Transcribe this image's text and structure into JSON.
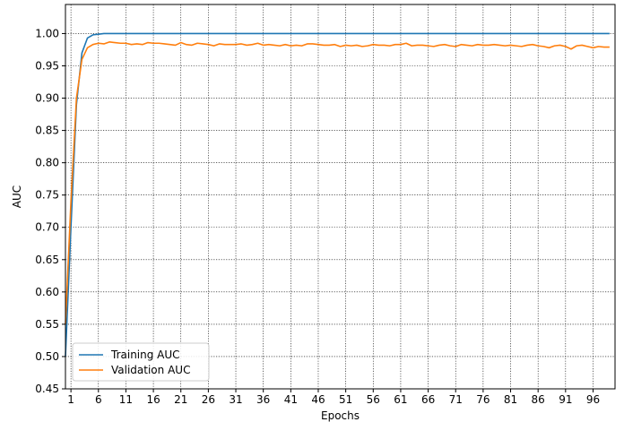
{
  "chart_data": {
    "type": "line",
    "xlabel": "Epochs",
    "ylabel": "AUC",
    "xlim": [
      0,
      100
    ],
    "ylim": [
      0.45,
      1.045
    ],
    "x_ticks": [
      1,
      6,
      11,
      16,
      21,
      26,
      31,
      36,
      41,
      46,
      51,
      56,
      61,
      66,
      71,
      76,
      81,
      86,
      91,
      96
    ],
    "y_ticks": [
      0.45,
      0.5,
      0.55,
      0.6,
      0.65,
      0.7,
      0.75,
      0.8,
      0.85,
      0.9,
      0.95,
      1.0
    ],
    "x_tick_labels": [
      "1",
      "6",
      "11",
      "16",
      "21",
      "26",
      "31",
      "36",
      "41",
      "46",
      "51",
      "56",
      "61",
      "66",
      "71",
      "76",
      "81",
      "86",
      "91",
      "96"
    ],
    "y_tick_labels": [
      "0.45",
      "0.50",
      "0.55",
      "0.60",
      "0.65",
      "0.70",
      "0.75",
      "0.80",
      "0.85",
      "0.90",
      "0.95",
      "1.00"
    ],
    "grid": true,
    "legend_position": "lower-left",
    "series": [
      {
        "name": "Training AUC",
        "color": "#1f77b4",
        "x": [
          0,
          1,
          2,
          3,
          4,
          5,
          6,
          7,
          8,
          9,
          10,
          11,
          12,
          13,
          14,
          15,
          16,
          17,
          18,
          19,
          20,
          21,
          22,
          23,
          24,
          25,
          26,
          27,
          28,
          29,
          30,
          31,
          32,
          33,
          34,
          35,
          36,
          37,
          38,
          39,
          40,
          41,
          42,
          43,
          44,
          45,
          46,
          47,
          48,
          49,
          50,
          51,
          52,
          53,
          54,
          55,
          56,
          57,
          58,
          59,
          60,
          61,
          62,
          63,
          64,
          65,
          66,
          67,
          68,
          69,
          70,
          71,
          72,
          73,
          74,
          75,
          76,
          77,
          78,
          79,
          80,
          81,
          82,
          83,
          84,
          85,
          86,
          87,
          88,
          89,
          90,
          91,
          92,
          93,
          94,
          95,
          96,
          97,
          98,
          99
        ],
        "values": [
          0.5,
          0.7,
          0.89,
          0.97,
          0.993,
          0.998,
          0.999,
          1.0,
          1.0,
          1.0,
          1.0,
          1.0,
          1.0,
          1.0,
          1.0,
          1.0,
          1.0,
          1.0,
          1.0,
          1.0,
          1.0,
          1.0,
          1.0,
          1.0,
          1.0,
          1.0,
          1.0,
          1.0,
          1.0,
          1.0,
          1.0,
          1.0,
          1.0,
          1.0,
          1.0,
          1.0,
          1.0,
          1.0,
          1.0,
          1.0,
          1.0,
          1.0,
          1.0,
          1.0,
          1.0,
          1.0,
          1.0,
          1.0,
          1.0,
          1.0,
          1.0,
          1.0,
          1.0,
          1.0,
          1.0,
          1.0,
          1.0,
          1.0,
          1.0,
          1.0,
          1.0,
          1.0,
          1.0,
          1.0,
          1.0,
          1.0,
          1.0,
          1.0,
          1.0,
          1.0,
          1.0,
          1.0,
          1.0,
          1.0,
          1.0,
          1.0,
          1.0,
          1.0,
          1.0,
          1.0,
          1.0,
          1.0,
          1.0,
          1.0,
          1.0,
          1.0,
          1.0,
          1.0,
          1.0,
          1.0,
          1.0,
          1.0,
          1.0,
          1.0,
          1.0,
          1.0,
          1.0,
          1.0,
          1.0,
          1.0
        ]
      },
      {
        "name": "Validation AUC",
        "color": "#ff7f0e",
        "x": [
          0,
          1,
          2,
          3,
          4,
          5,
          6,
          7,
          8,
          9,
          10,
          11,
          12,
          13,
          14,
          15,
          16,
          17,
          18,
          19,
          20,
          21,
          22,
          23,
          24,
          25,
          26,
          27,
          28,
          29,
          30,
          31,
          32,
          33,
          34,
          35,
          36,
          37,
          38,
          39,
          40,
          41,
          42,
          43,
          44,
          45,
          46,
          47,
          48,
          49,
          50,
          51,
          52,
          53,
          54,
          55,
          56,
          57,
          58,
          59,
          60,
          61,
          62,
          63,
          64,
          65,
          66,
          67,
          68,
          69,
          70,
          71,
          72,
          73,
          74,
          75,
          76,
          77,
          78,
          79,
          80,
          81,
          82,
          83,
          84,
          85,
          86,
          87,
          88,
          89,
          90,
          91,
          92,
          93,
          94,
          95,
          96,
          97,
          98,
          99
        ],
        "values": [
          0.55,
          0.74,
          0.9,
          0.96,
          0.978,
          0.983,
          0.985,
          0.984,
          0.987,
          0.986,
          0.985,
          0.985,
          0.983,
          0.984,
          0.983,
          0.986,
          0.985,
          0.985,
          0.984,
          0.983,
          0.982,
          0.986,
          0.983,
          0.982,
          0.985,
          0.984,
          0.983,
          0.981,
          0.984,
          0.983,
          0.983,
          0.983,
          0.984,
          0.982,
          0.983,
          0.985,
          0.982,
          0.983,
          0.982,
          0.981,
          0.983,
          0.981,
          0.982,
          0.981,
          0.984,
          0.984,
          0.983,
          0.982,
          0.982,
          0.983,
          0.98,
          0.982,
          0.981,
          0.982,
          0.98,
          0.981,
          0.983,
          0.982,
          0.982,
          0.981,
          0.983,
          0.983,
          0.985,
          0.981,
          0.982,
          0.982,
          0.981,
          0.98,
          0.982,
          0.983,
          0.981,
          0.98,
          0.983,
          0.982,
          0.981,
          0.983,
          0.982,
          0.982,
          0.983,
          0.982,
          0.981,
          0.982,
          0.981,
          0.98,
          0.982,
          0.983,
          0.981,
          0.98,
          0.978,
          0.981,
          0.982,
          0.98,
          0.976,
          0.981,
          0.982,
          0.98,
          0.978,
          0.98,
          0.979,
          0.979
        ]
      }
    ]
  }
}
